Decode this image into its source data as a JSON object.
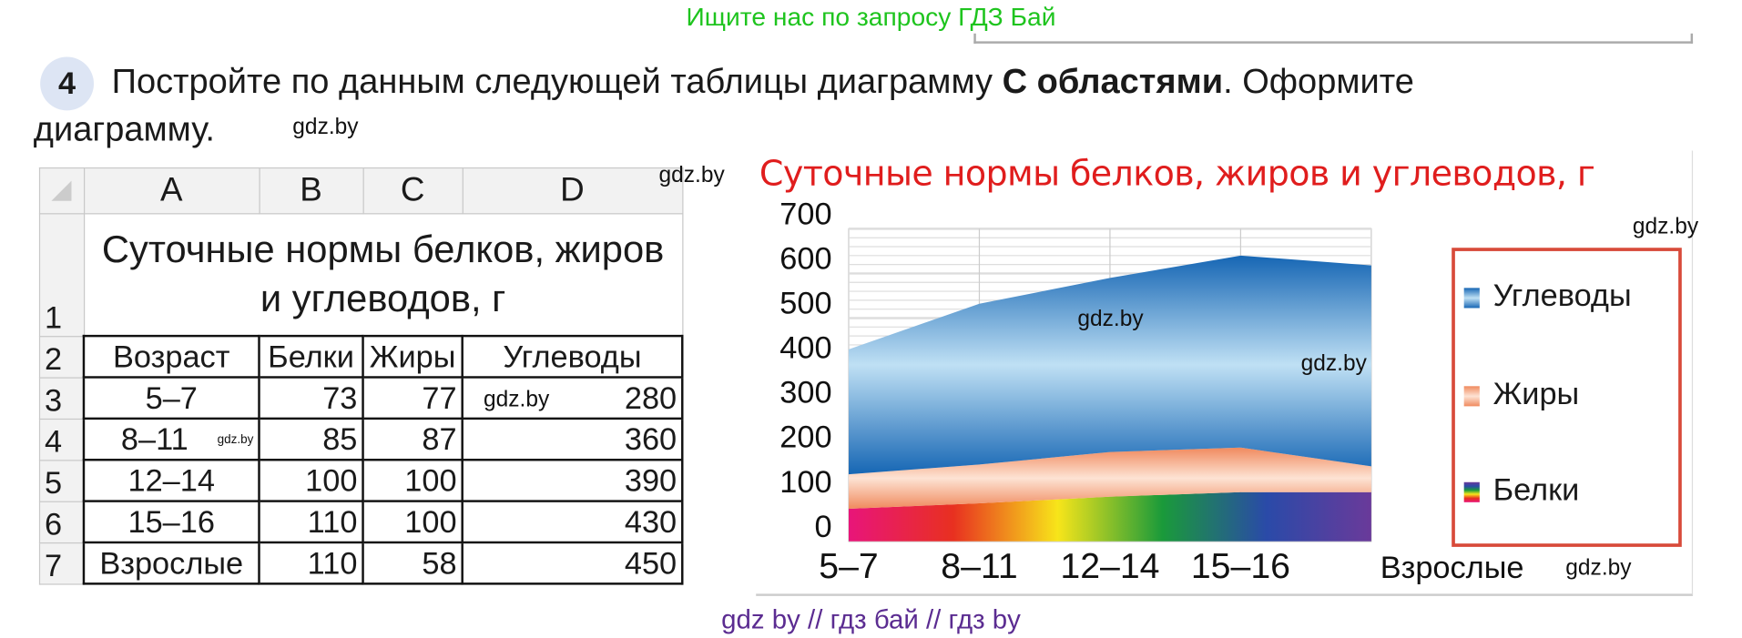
{
  "header": {
    "ad_text": "Ищите нас по запросу ГДЗ Бай"
  },
  "task": {
    "number": "4",
    "text_before": "Постройте по данным следующей таблицы диаграмму ",
    "text_bold": "С областями",
    "text_after": ". Оформите",
    "text_line2": "диаграмму."
  },
  "spreadsheet": {
    "columns": [
      "A",
      "B",
      "C",
      "D"
    ],
    "row_numbers": [
      "1",
      "2",
      "3",
      "4",
      "5",
      "6",
      "7"
    ],
    "title": "Суточные нормы белков, жиров и углеводов, г",
    "headers": [
      "Возраст",
      "Белки",
      "Жиры",
      "Углеводы"
    ],
    "rows": [
      [
        "5–7",
        "73",
        "77",
        "280"
      ],
      [
        "8–11",
        "85",
        "87",
        "360"
      ],
      [
        "12–14",
        "100",
        "100",
        "390"
      ],
      [
        "15–16",
        "110",
        "100",
        "430"
      ],
      [
        "Взрослые",
        "110",
        "58",
        "450"
      ]
    ]
  },
  "watermarks": {
    "mark": "gdz.by",
    "bottom": "gdz by  //  гдз бай  //  гдз by"
  },
  "chart_data": {
    "type": "area",
    "stacked": true,
    "title": "Суточные нормы белков, жиров и углеводов, г",
    "categories": [
      "5–7",
      "8–11",
      "12–14",
      "15–16",
      "Взрослые"
    ],
    "series": [
      {
        "name": "Белки",
        "values": [
          73,
          85,
          100,
          110,
          110
        ],
        "colors": [
          "#e8157a",
          "#e83020",
          "#f7e51a",
          "#1a9a3a",
          "#2a4aa8",
          "#6a3a9a"
        ]
      },
      {
        "name": "Жиры",
        "values": [
          77,
          87,
          100,
          100,
          58
        ],
        "colors": [
          "#f08a5e",
          "#fde3d4"
        ]
      },
      {
        "name": "Углеводы",
        "values": [
          280,
          360,
          390,
          430,
          450
        ],
        "colors": [
          "#1666b4",
          "#bfe0f4"
        ]
      }
    ],
    "legend_order": [
      "Углеводы",
      "Жиры",
      "Белки"
    ],
    "yticks": [
      "0",
      "100",
      "200",
      "300",
      "400",
      "500",
      "600",
      "700"
    ],
    "ylim": [
      0,
      700
    ],
    "grid": true,
    "legend": "right",
    "legend_border_color": "#d84a3a",
    "title_color": "#e01d1d"
  }
}
